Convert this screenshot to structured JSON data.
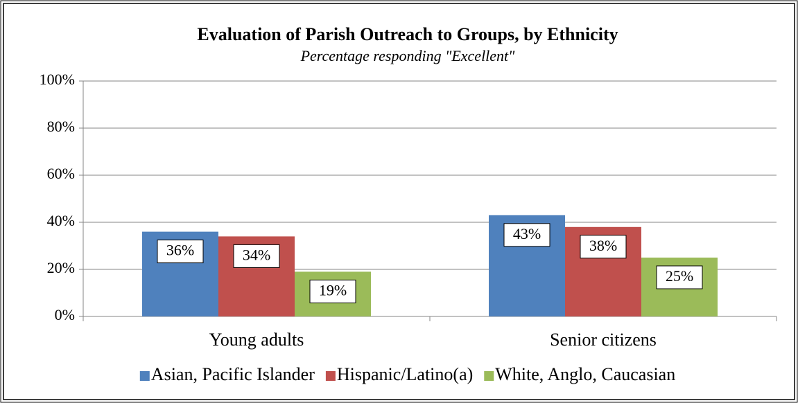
{
  "chart_data": {
    "type": "bar",
    "title": "Evaluation of Parish Outreach to Groups, by Ethnicity",
    "subtitle": "Percentage responding \"Excellent\"",
    "categories": [
      "Young adults",
      "Senior citizens"
    ],
    "series": [
      {
        "name": "Asian, Pacific Islander",
        "color": "#4f81bd",
        "values": [
          36,
          43
        ],
        "value_labels": [
          "36%",
          "43%"
        ]
      },
      {
        "name": "Hispanic/Latino(a)",
        "color": "#c0504d",
        "values": [
          34,
          38
        ],
        "value_labels": [
          "34%",
          "38%"
        ]
      },
      {
        "name": "White, Anglo, Caucasian",
        "color": "#9bbb59",
        "values": [
          19,
          25
        ],
        "value_labels": [
          "19%",
          "25%"
        ]
      }
    ],
    "ylim": [
      0,
      100
    ],
    "yticks": [
      {
        "value": 0,
        "label": "0%"
      },
      {
        "value": 20,
        "label": "20%"
      },
      {
        "value": 40,
        "label": "40%"
      },
      {
        "value": 60,
        "label": "60%"
      },
      {
        "value": 80,
        "label": "80%"
      },
      {
        "value": 100,
        "label": "100%"
      }
    ],
    "grid": true,
    "legend": "bottom"
  }
}
